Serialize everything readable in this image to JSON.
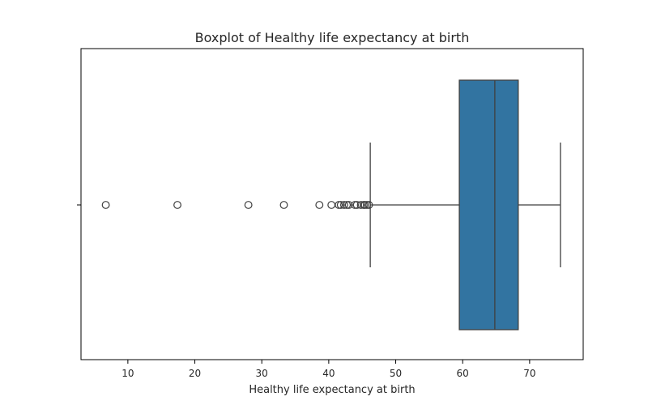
{
  "chart_data": {
    "type": "boxplot",
    "orientation": "horizontal",
    "title": "Boxplot of Healthy life expectancy at birth",
    "xlabel": "Healthy life expectancy at birth",
    "ylabel": "",
    "xlim": [
      3.0,
      78.0
    ],
    "xticks": [
      10,
      20,
      30,
      40,
      50,
      60,
      70
    ],
    "grid": false,
    "colors": {
      "box_fill": "#3274a1",
      "lines": "#3f3f3f",
      "axes": "#000000"
    },
    "series": [
      {
        "whisker_low": 46.2,
        "q1": 59.5,
        "median": 64.8,
        "q3": 68.3,
        "whisker_high": 74.6,
        "outliers": [
          6.7,
          17.4,
          28.0,
          33.3,
          38.6,
          40.4,
          41.5,
          41.8,
          42.3,
          42.7,
          43.0,
          43.9,
          44.2,
          44.8,
          45.2,
          45.4,
          45.7,
          46.0
        ]
      }
    ]
  }
}
